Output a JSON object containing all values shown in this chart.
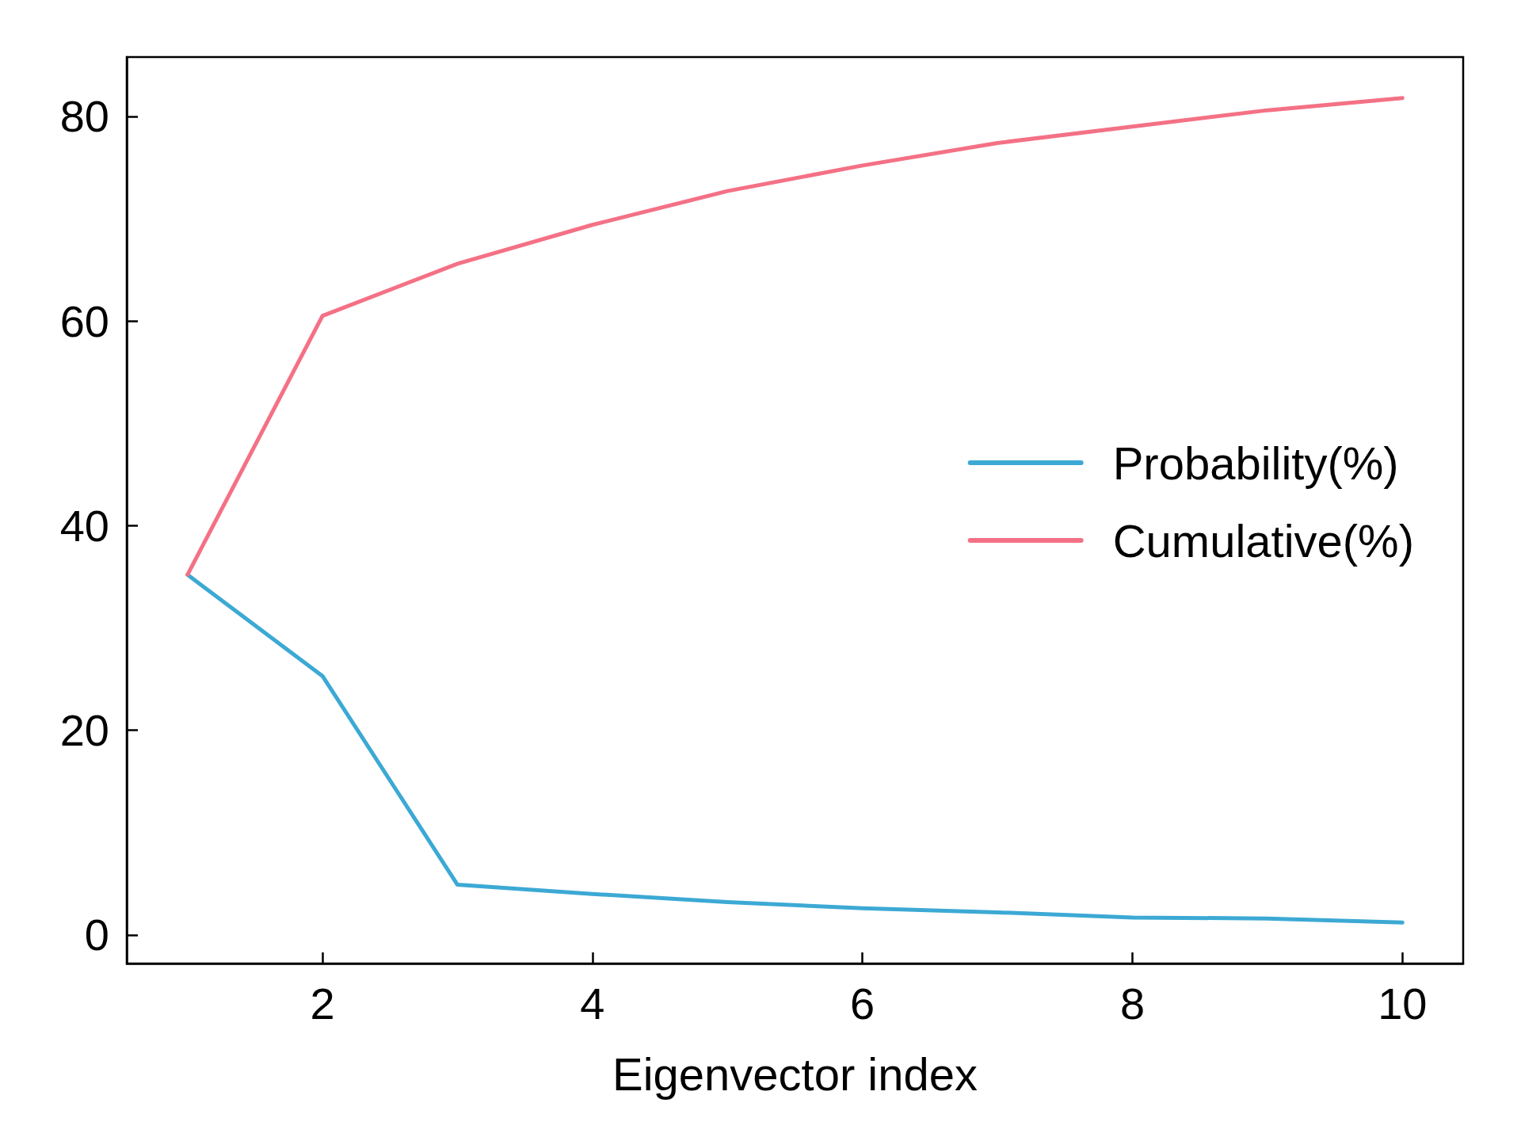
{
  "chart_data": {
    "type": "line",
    "xlabel": "Eigenvector index",
    "x": [
      1,
      2,
      3,
      4,
      5,
      6,
      7,
      8,
      9,
      10
    ],
    "series": [
      {
        "name": "Probability(%)",
        "color": "#3ca9d4",
        "values": [
          35.2,
          25.3,
          4.9,
          4.0,
          3.2,
          2.6,
          2.2,
          1.7,
          1.6,
          1.2
        ]
      },
      {
        "name": "Cumulative(%)",
        "color": "#f47185",
        "values": [
          35.2,
          60.5,
          65.6,
          69.4,
          72.7,
          75.2,
          77.4,
          79.0,
          80.6,
          81.8
        ]
      }
    ],
    "xlim": [
      0.55,
      10.45
    ],
    "xticks": [
      2,
      4,
      6,
      8,
      10
    ],
    "ylim": [
      -2.8,
      85.8
    ],
    "yticks": [
      0,
      20,
      40,
      60,
      80
    ],
    "grid": false,
    "legend": "right",
    "marker": "none",
    "line_style": "solid"
  }
}
